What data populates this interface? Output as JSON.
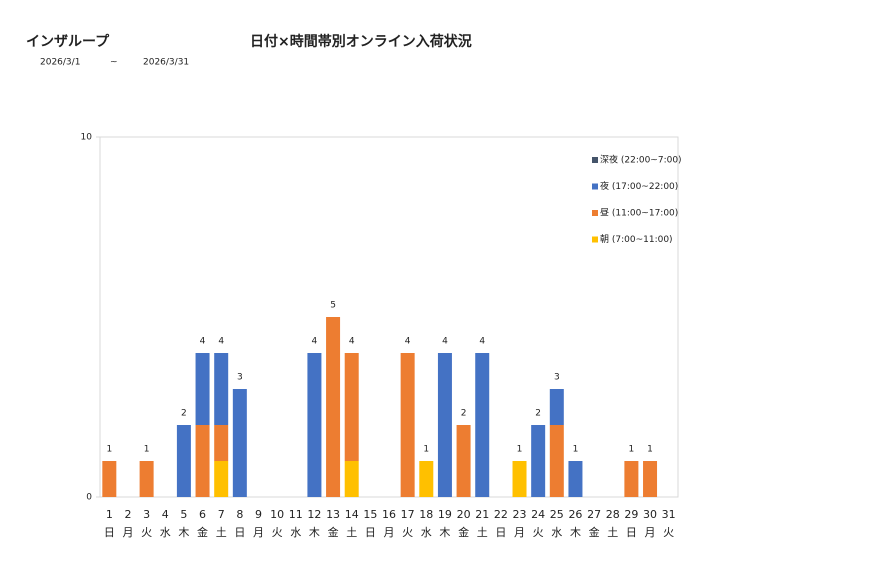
{
  "header": {
    "company": "インザループ",
    "date_from": "2026/3/1",
    "date_sep": "~",
    "date_to": "2026/3/31"
  },
  "chart_data": {
    "type": "stacked_bar",
    "title": "日付×時間帯別オンライン入荷状況",
    "categories": [
      "1",
      "2",
      "3",
      "4",
      "5",
      "6",
      "7",
      "8",
      "9",
      "10",
      "11",
      "12",
      "13",
      "14",
      "15",
      "16",
      "17",
      "18",
      "19",
      "20",
      "21",
      "22",
      "23",
      "24",
      "25",
      "26",
      "27",
      "28",
      "29",
      "30",
      "31"
    ],
    "weekdays": [
      "日",
      "月",
      "火",
      "水",
      "木",
      "金",
      "土",
      "日",
      "月",
      "火",
      "水",
      "木",
      "金",
      "土",
      "日",
      "月",
      "火",
      "水",
      "木",
      "金",
      "土",
      "日",
      "月",
      "火",
      "水",
      "木",
      "金",
      "土",
      "日",
      "月",
      "火"
    ],
    "series": [
      {
        "name": "朝 (7:00~11:00)",
        "color": "#ffc000",
        "values": [
          0,
          0,
          0,
          0,
          0,
          0,
          1,
          0,
          0,
          0,
          0,
          0,
          0,
          1,
          0,
          0,
          0,
          1,
          0,
          0,
          0,
          0,
          1,
          0,
          0,
          0,
          0,
          0,
          0,
          0,
          0
        ]
      },
      {
        "name": "昼 (11:00~17:00)",
        "color": "#ed7d31",
        "values": [
          1,
          0,
          1,
          0,
          0,
          2,
          1,
          0,
          0,
          0,
          0,
          0,
          5,
          3,
          0,
          0,
          4,
          0,
          0,
          2,
          0,
          0,
          0,
          0,
          2,
          0,
          0,
          0,
          1,
          1,
          0
        ]
      },
      {
        "name": "夜 (17:00~22:00)",
        "color": "#4472c4",
        "values": [
          0,
          0,
          0,
          0,
          2,
          2,
          2,
          3,
          0,
          0,
          0,
          4,
          0,
          0,
          0,
          0,
          0,
          0,
          4,
          0,
          4,
          0,
          0,
          2,
          1,
          1,
          0,
          0,
          0,
          0,
          0
        ]
      },
      {
        "name": "深夜 (22:00~7:00)",
        "color": "#44546a",
        "values": [
          0,
          0,
          0,
          0,
          0,
          0,
          0,
          0,
          0,
          0,
          0,
          0,
          0,
          0,
          0,
          0,
          0,
          0,
          0,
          0,
          0,
          0,
          0,
          0,
          0,
          0,
          0,
          0,
          0,
          0,
          0
        ]
      }
    ],
    "totals": [
      1,
      null,
      1,
      null,
      2,
      4,
      4,
      3,
      null,
      null,
      null,
      4,
      5,
      4,
      null,
      null,
      4,
      1,
      4,
      2,
      4,
      null,
      1,
      2,
      3,
      1,
      null,
      null,
      1,
      1,
      null
    ],
    "ylim": [
      0,
      10
    ],
    "yticks": [
      0,
      10
    ]
  }
}
